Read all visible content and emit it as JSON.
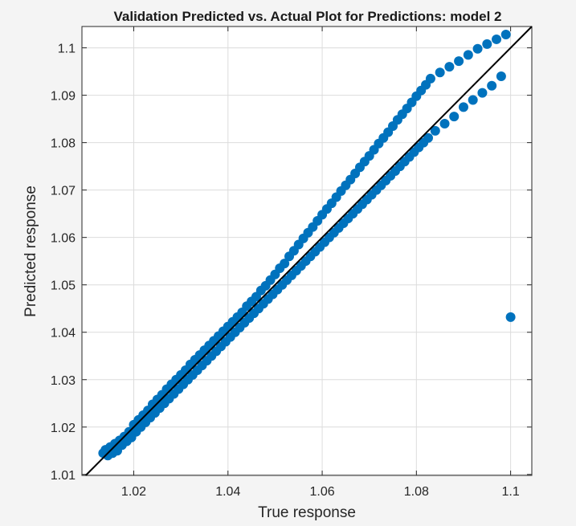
{
  "chart_data": {
    "type": "scatter",
    "title": "Validation Predicted vs. Actual Plot for Predictions: model 2",
    "xlabel": "True response",
    "ylabel": "Predicted response",
    "xlim": [
      1.009,
      1.1045
    ],
    "ylim": [
      1.0098,
      1.1045
    ],
    "xticks": [
      1.02,
      1.04,
      1.06,
      1.08,
      1.1
    ],
    "xtick_labels": [
      "1.02",
      "1.04",
      "1.06",
      "1.08",
      "1.1"
    ],
    "yticks": [
      1.01,
      1.02,
      1.03,
      1.04,
      1.05,
      1.06,
      1.07,
      1.08,
      1.09,
      1.1
    ],
    "ytick_labels": [
      "1.01",
      "1.02",
      "1.03",
      "1.04",
      "1.05",
      "1.06",
      "1.07",
      "1.08",
      "1.09",
      "1.1"
    ],
    "grid": true,
    "marker_color": "#0072bd",
    "reference_line": {
      "slope": 1,
      "intercept": 0,
      "color": "#000000"
    },
    "series": [
      {
        "points": [
          [
            1.0135,
            1.0145
          ],
          [
            1.014,
            1.0152
          ],
          [
            1.0145,
            1.014
          ],
          [
            1.015,
            1.0158
          ],
          [
            1.0155,
            1.0145
          ],
          [
            1.016,
            1.0165
          ],
          [
            1.0165,
            1.015
          ],
          [
            1.017,
            1.0172
          ],
          [
            1.0175,
            1.0162
          ],
          [
            1.018,
            1.018
          ],
          [
            1.0185,
            1.017
          ],
          [
            1.019,
            1.019
          ],
          [
            1.0195,
            1.0178
          ],
          [
            1.02,
            1.0205
          ],
          [
            1.0205,
            1.019
          ],
          [
            1.021,
            1.0215
          ],
          [
            1.0215,
            1.02
          ],
          [
            1.022,
            1.0225
          ],
          [
            1.0225,
            1.021
          ],
          [
            1.023,
            1.0235
          ],
          [
            1.0235,
            1.022
          ],
          [
            1.024,
            1.0248
          ],
          [
            1.0245,
            1.023
          ],
          [
            1.025,
            1.0258
          ],
          [
            1.0255,
            1.024
          ],
          [
            1.026,
            1.0268
          ],
          [
            1.0265,
            1.025
          ],
          [
            1.027,
            1.028
          ],
          [
            1.0275,
            1.026
          ],
          [
            1.028,
            1.029
          ],
          [
            1.0285,
            1.027
          ],
          [
            1.029,
            1.03
          ],
          [
            1.0295,
            1.028
          ],
          [
            1.03,
            1.031
          ],
          [
            1.0305,
            1.029
          ],
          [
            1.031,
            1.032
          ],
          [
            1.0315,
            1.03
          ],
          [
            1.032,
            1.0332
          ],
          [
            1.0325,
            1.031
          ],
          [
            1.033,
            1.0342
          ],
          [
            1.0335,
            1.032
          ],
          [
            1.034,
            1.0352
          ],
          [
            1.0345,
            1.033
          ],
          [
            1.035,
            1.0362
          ],
          [
            1.0355,
            1.034
          ],
          [
            1.036,
            1.0372
          ],
          [
            1.0365,
            1.035
          ],
          [
            1.037,
            1.0382
          ],
          [
            1.0375,
            1.036
          ],
          [
            1.038,
            1.0392
          ],
          [
            1.0385,
            1.037
          ],
          [
            1.039,
            1.0402
          ],
          [
            1.0395,
            1.038
          ],
          [
            1.04,
            1.0412
          ],
          [
            1.0405,
            1.039
          ],
          [
            1.041,
            1.0422
          ],
          [
            1.0415,
            1.04
          ],
          [
            1.042,
            1.0432
          ],
          [
            1.0425,
            1.041
          ],
          [
            1.043,
            1.0442
          ],
          [
            1.0435,
            1.042
          ],
          [
            1.044,
            1.0455
          ],
          [
            1.0445,
            1.043
          ],
          [
            1.045,
            1.0465
          ],
          [
            1.0455,
            1.044
          ],
          [
            1.046,
            1.0475
          ],
          [
            1.0465,
            1.045
          ],
          [
            1.047,
            1.0488
          ],
          [
            1.0475,
            1.046
          ],
          [
            1.048,
            1.0498
          ],
          [
            1.0485,
            1.047
          ],
          [
            1.049,
            1.051
          ],
          [
            1.0495,
            1.048
          ],
          [
            1.05,
            1.0522
          ],
          [
            1.0505,
            1.049
          ],
          [
            1.051,
            1.0535
          ],
          [
            1.0515,
            1.05
          ],
          [
            1.052,
            1.0545
          ],
          [
            1.0525,
            1.051
          ],
          [
            1.053,
            1.056
          ],
          [
            1.0535,
            1.052
          ],
          [
            1.054,
            1.0572
          ],
          [
            1.0545,
            1.053
          ],
          [
            1.055,
            1.0585
          ],
          [
            1.0555,
            1.054
          ],
          [
            1.056,
            1.0598
          ],
          [
            1.0565,
            1.055
          ],
          [
            1.057,
            1.061
          ],
          [
            1.0575,
            1.056
          ],
          [
            1.058,
            1.0622
          ],
          [
            1.0585,
            1.057
          ],
          [
            1.059,
            1.0635
          ],
          [
            1.0595,
            1.058
          ],
          [
            1.06,
            1.0648
          ],
          [
            1.0605,
            1.059
          ],
          [
            1.061,
            1.066
          ],
          [
            1.0615,
            1.06
          ],
          [
            1.062,
            1.0672
          ],
          [
            1.0625,
            1.061
          ],
          [
            1.063,
            1.0685
          ],
          [
            1.0635,
            1.062
          ],
          [
            1.064,
            1.0698
          ],
          [
            1.0645,
            1.063
          ],
          [
            1.065,
            1.071
          ],
          [
            1.0655,
            1.064
          ],
          [
            1.066,
            1.0722
          ],
          [
            1.0665,
            1.065
          ],
          [
            1.067,
            1.0735
          ],
          [
            1.0675,
            1.066
          ],
          [
            1.068,
            1.0748
          ],
          [
            1.0685,
            1.067
          ],
          [
            1.069,
            1.076
          ],
          [
            1.0695,
            1.068
          ],
          [
            1.07,
            1.0772
          ],
          [
            1.0705,
            1.069
          ],
          [
            1.071,
            1.0785
          ],
          [
            1.0715,
            1.07
          ],
          [
            1.072,
            1.0798
          ],
          [
            1.0725,
            1.071
          ],
          [
            1.073,
            1.081
          ],
          [
            1.0735,
            1.072
          ],
          [
            1.074,
            1.0822
          ],
          [
            1.0745,
            1.073
          ],
          [
            1.075,
            1.0835
          ],
          [
            1.0755,
            1.074
          ],
          [
            1.076,
            1.0848
          ],
          [
            1.0765,
            1.075
          ],
          [
            1.077,
            1.086
          ],
          [
            1.0775,
            1.076
          ],
          [
            1.078,
            1.0872
          ],
          [
            1.0785,
            1.077
          ],
          [
            1.079,
            1.0885
          ],
          [
            1.0795,
            1.078
          ],
          [
            1.08,
            1.0898
          ],
          [
            1.0805,
            1.079
          ],
          [
            1.081,
            1.091
          ],
          [
            1.0815,
            1.08
          ],
          [
            1.082,
            1.0922
          ],
          [
            1.0825,
            1.081
          ],
          [
            1.083,
            1.0935
          ],
          [
            1.084,
            1.0825
          ],
          [
            1.085,
            1.0948
          ],
          [
            1.086,
            1.084
          ],
          [
            1.087,
            1.096
          ],
          [
            1.088,
            1.0855
          ],
          [
            1.089,
            1.0972
          ],
          [
            1.09,
            1.0875
          ],
          [
            1.091,
            1.0985
          ],
          [
            1.092,
            1.089
          ],
          [
            1.093,
            1.0998
          ],
          [
            1.094,
            1.0905
          ],
          [
            1.095,
            1.1008
          ],
          [
            1.096,
            1.092
          ],
          [
            1.097,
            1.1018
          ],
          [
            1.098,
            1.094
          ],
          [
            1.099,
            1.1028
          ],
          [
            1.1,
            1.0432
          ]
        ]
      }
    ]
  }
}
